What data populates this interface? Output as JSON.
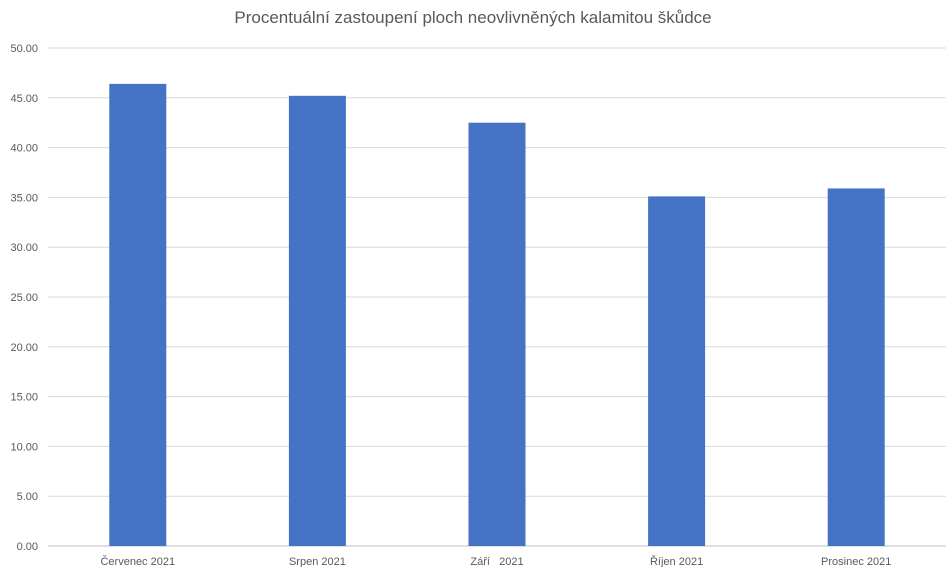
{
  "chart_data": {
    "type": "bar",
    "title": "Procentuální zastoupení ploch neovlivněných kalamitou škůdce",
    "xlabel": "",
    "ylabel": "",
    "categories": [
      "Červenec 2021",
      "Srpen 2021",
      "Září   2021",
      "Říjen 2021",
      "Prosinec 2021"
    ],
    "values": [
      46.4,
      45.2,
      42.5,
      35.1,
      35.9
    ],
    "ylim": [
      0,
      50
    ],
    "yticks": [
      "0.00",
      "5.00",
      "10.00",
      "15.00",
      "20.00",
      "25.00",
      "30.00",
      "35.00",
      "40.00",
      "45.00",
      "50.00"
    ],
    "grid": true,
    "legend": "none",
    "colors": {
      "bar": "#4472C4",
      "grid": "#D9D9D9",
      "text": "#595959"
    }
  }
}
